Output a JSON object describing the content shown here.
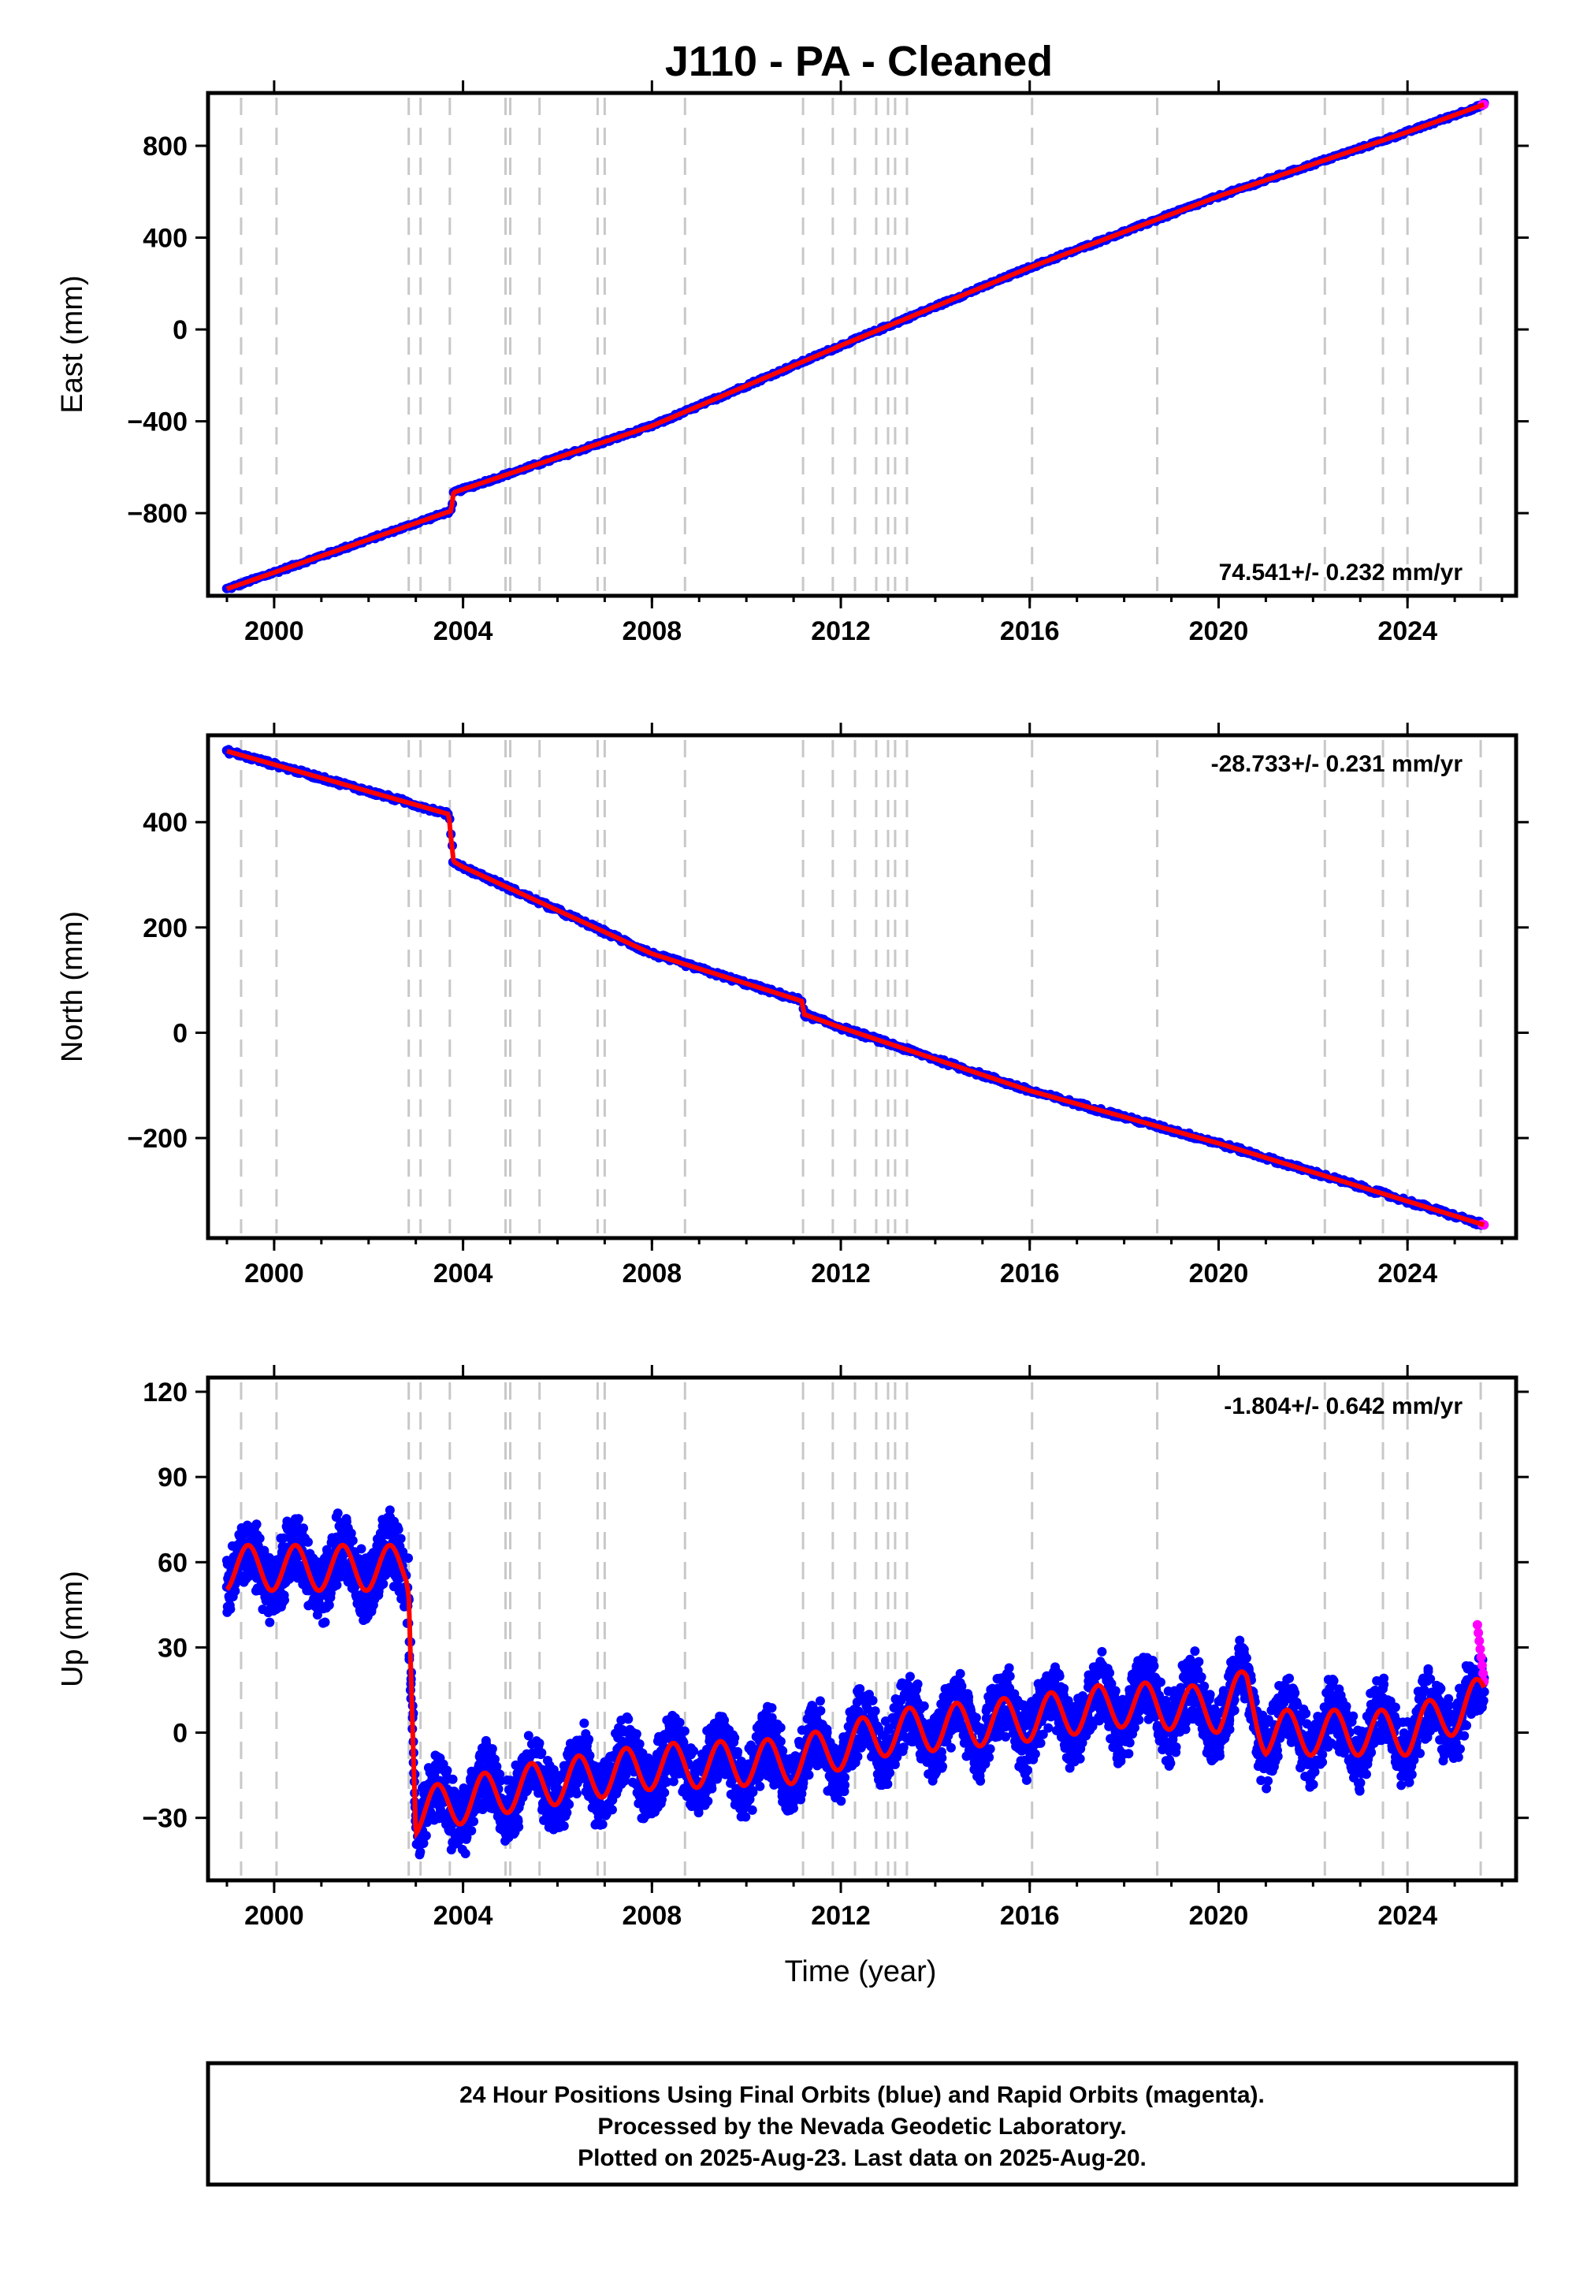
{
  "title": "J110  - PA - Cleaned",
  "x_axis_label": "Time (year)",
  "footer": [
    "24 Hour Positions Using Final Orbits (blue) and Rapid Orbits (magenta).",
    "Processed by the Nevada Geodetic Laboratory.",
    "Plotted on 2025-Aug-23. Last data on 2025-Aug-20."
  ],
  "colors": {
    "final_orbits": "#0000ff",
    "rapid_orbits": "#ff00ff",
    "model_fit": "#ff0000",
    "event_lines": "#c8c8c8"
  },
  "chart_data": [
    {
      "type": "scatter",
      "ylabel": "East (mm)",
      "rate_label": "74.541+/- 0.232 mm/yr",
      "rate_position": "bottom-right",
      "xlim": [
        1998.6,
        2026.3
      ],
      "ylim": [
        -1160,
        1030
      ],
      "xticks": [
        2000,
        2004,
        2008,
        2012,
        2016,
        2020,
        2024
      ],
      "yticks": [
        -800,
        -400,
        0,
        400,
        800
      ],
      "event_years": [
        1999.3,
        2000.05,
        2002.85,
        2003.1,
        2003.72,
        2004.9,
        2005.0,
        2005.62,
        2006.85,
        2007.0,
        2008.7,
        2011.2,
        2011.83,
        2012.3,
        2012.75,
        2013.0,
        2013.15,
        2013.4,
        2016.05,
        2018.7,
        2022.25,
        2023.48,
        2024.0,
        2025.55
      ],
      "series": [
        {
          "name": "Final Orbits",
          "x": [
            1999.0,
            2003.75,
            2003.8,
            2008.0,
            2012.0,
            2016.0,
            2020.0,
            2024.0,
            2025.62
          ],
          "y": [
            -1130,
            -790,
            -710,
            -420,
            -70,
            270,
            580,
            860,
            980
          ]
        }
      ]
    },
    {
      "type": "scatter",
      "ylabel": "North (mm)",
      "rate_label": "-28.733+/- 0.231 mm/yr",
      "rate_position": "top-right",
      "xlim": [
        1998.6,
        2026.3
      ],
      "ylim": [
        -390,
        565
      ],
      "xticks": [
        2000,
        2004,
        2008,
        2012,
        2016,
        2020,
        2024
      ],
      "yticks": [
        -200,
        0,
        200,
        400
      ],
      "event_years": [
        1999.3,
        2000.05,
        2002.85,
        2003.1,
        2003.72,
        2004.9,
        2005.0,
        2005.62,
        2006.85,
        2007.0,
        2008.7,
        2011.2,
        2011.83,
        2012.3,
        2012.75,
        2013.0,
        2013.15,
        2013.4,
        2016.05,
        2018.7,
        2022.25,
        2023.48,
        2024.0,
        2025.55
      ],
      "series": [
        {
          "name": "Final Orbits",
          "x": [
            1999.0,
            2003.7,
            2003.72,
            2003.8,
            2004.0,
            2008.0,
            2011.18,
            2011.22,
            2012.0,
            2016.0,
            2020.0,
            2024.0,
            2025.62
          ],
          "y": [
            535,
            415,
            390,
            325,
            315,
            150,
            60,
            35,
            10,
            -110,
            -210,
            -320,
            -365
          ]
        }
      ]
    },
    {
      "type": "scatter",
      "ylabel": "Up (mm)",
      "rate_label": "-1.804+/- 0.642 mm/yr",
      "rate_position": "top-right",
      "xlim": [
        1998.6,
        2026.3
      ],
      "ylim": [
        -52,
        125
      ],
      "xticks": [
        2000,
        2004,
        2008,
        2012,
        2016,
        2020,
        2024
      ],
      "yticks": [
        -30,
        0,
        30,
        60,
        90,
        120
      ],
      "event_years": [
        1999.3,
        2000.05,
        2002.85,
        2003.1,
        2003.72,
        2004.9,
        2005.0,
        2005.62,
        2006.85,
        2007.0,
        2008.7,
        2011.2,
        2011.83,
        2012.3,
        2012.75,
        2013.0,
        2013.15,
        2013.4,
        2016.05,
        2018.7,
        2022.25,
        2023.48,
        2024.0,
        2025.55
      ],
      "series": [
        {
          "name": "Final Orbits",
          "x": [
            1999.0,
            2002.8,
            2002.85,
            2003.0,
            2005.0,
            2008.0,
            2011.0,
            2013.0,
            2016.0,
            2018.0,
            2020.0,
            2020.6,
            2021.0,
            2024.0,
            2025.62
          ],
          "y": [
            58,
            58,
            55,
            -28,
            -20,
            -12,
            -10,
            0,
            5,
            10,
            8,
            15,
            0,
            0,
            12
          ]
        }
      ]
    }
  ]
}
